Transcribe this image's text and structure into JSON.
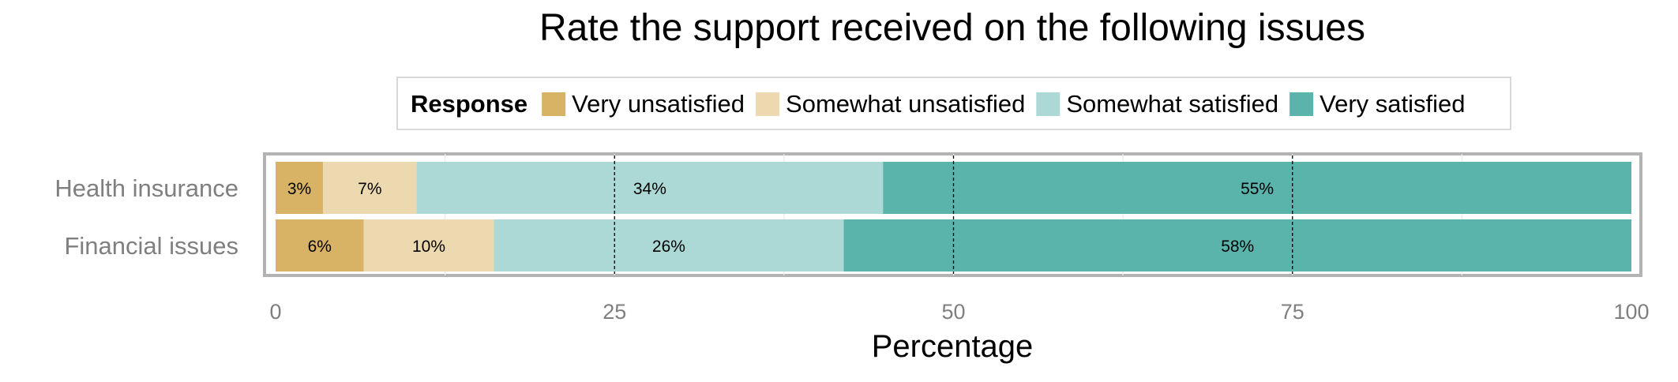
{
  "chart_data": {
    "type": "bar",
    "orientation": "horizontal",
    "stacked": true,
    "title": "Rate the support received on the following issues",
    "xlabel": "Percentage",
    "ylabel": "",
    "xlim": [
      0,
      100
    ],
    "x_ticks": [
      "0",
      "25",
      "50",
      "75",
      "100"
    ],
    "categories": [
      "Health insurance",
      "Financial issues"
    ],
    "legend": {
      "title": "Response",
      "placement": "top"
    },
    "series": [
      {
        "name": "Very unsatisfied",
        "color": "#d8b365",
        "values": [
          3.5,
          6.5
        ],
        "labels": [
          "3%",
          "6%"
        ]
      },
      {
        "name": "Somewhat unsatisfied",
        "color": "#ecd9b0",
        "values": [
          6.9,
          9.6
        ],
        "labels": [
          "7%",
          "10%"
        ]
      },
      {
        "name": "Somewhat satisfied",
        "color": "#acd9d5",
        "values": [
          34.4,
          25.8
        ],
        "labels": [
          "34%",
          "26%"
        ]
      },
      {
        "name": "Very satisfied",
        "color": "#5ab4ac",
        "values": [
          55.2,
          58.1
        ],
        "labels": [
          "55%",
          "58%"
        ]
      }
    ],
    "grid": true,
    "reference_lines": [
      25,
      50,
      75
    ]
  }
}
